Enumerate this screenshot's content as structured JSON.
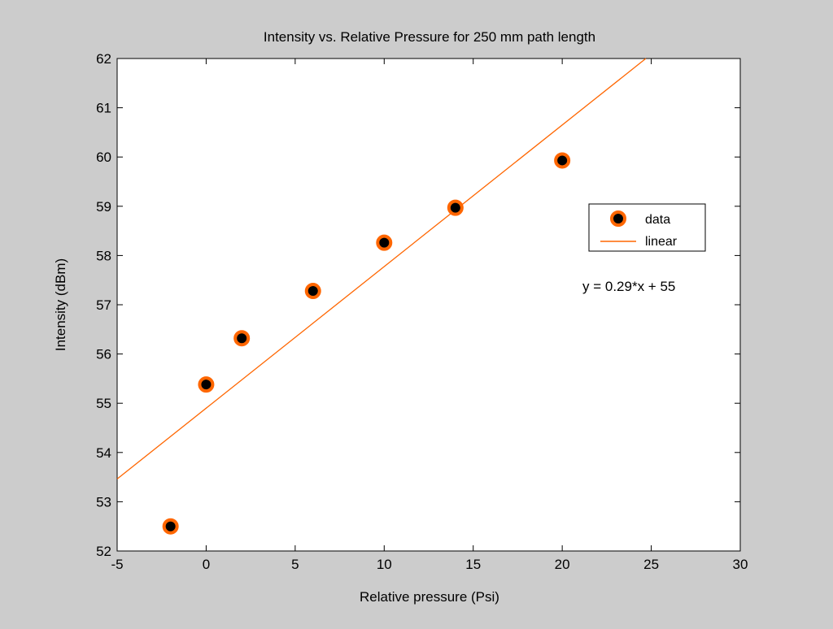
{
  "chart_data": {
    "type": "scatter",
    "title": "Intensity vs. Relative Pressure for 250 mm path length",
    "xlabel": "Relative pressure (Psi)",
    "ylabel": "Intensity (dBm)",
    "xlim": [
      -5,
      30
    ],
    "ylim": [
      52,
      62
    ],
    "xticks": [
      -5,
      0,
      5,
      10,
      15,
      20,
      25,
      30
    ],
    "yticks": [
      52,
      53,
      54,
      55,
      56,
      57,
      58,
      59,
      60,
      61,
      62
    ],
    "grid": false,
    "legend_position": "right",
    "series": [
      {
        "name": "data",
        "kind": "scatter",
        "x": [
          -2,
          0,
          2,
          6,
          10,
          14,
          20
        ],
        "y": [
          52.5,
          55.38,
          56.32,
          57.28,
          58.26,
          58.97,
          59.93
        ],
        "marker_color": "#000000",
        "edge_color": "#ff6600"
      },
      {
        "name": "linear",
        "kind": "line",
        "slope": 0.2875,
        "intercept": 54.9,
        "color": "#ff6600"
      }
    ],
    "annotation": "y = 0.29*x + 55"
  }
}
